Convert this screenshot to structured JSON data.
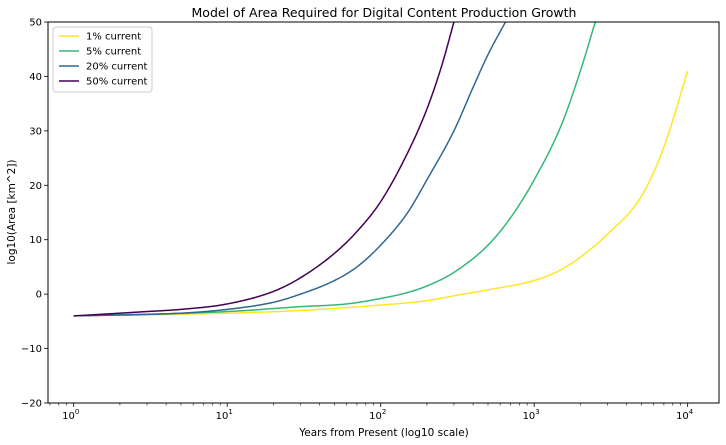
{
  "chart_data": {
    "type": "line",
    "title": "Model of Area Required for Digital Content Production Growth",
    "xlabel": "Years from Present (log10 scale)",
    "ylabel": "log10(Area [km^2])",
    "xscale": "log",
    "xlim": [
      0.68,
      16000
    ],
    "ylim": [
      -20,
      50
    ],
    "x_ticks": [
      {
        "value": 1,
        "base": "10",
        "exp": "0"
      },
      {
        "value": 10,
        "base": "10",
        "exp": "1"
      },
      {
        "value": 100,
        "base": "10",
        "exp": "2"
      },
      {
        "value": 1000,
        "base": "10",
        "exp": "3"
      },
      {
        "value": 10000,
        "base": "10",
        "exp": "4"
      }
    ],
    "y_ticks": [
      -20,
      -10,
      0,
      10,
      20,
      30,
      40,
      50
    ],
    "grid": false,
    "legend_position": "top-left",
    "series": [
      {
        "name": "1% current",
        "color": "#fde725",
        "points": [
          [
            1,
            -4.0
          ],
          [
            10,
            -3.5
          ],
          [
            30,
            -3.0
          ],
          [
            100,
            -2.0
          ],
          [
            200,
            -1.2
          ],
          [
            300,
            -0.3
          ],
          [
            500,
            0.8
          ],
          [
            1000,
            2.5
          ],
          [
            1500,
            4.5
          ],
          [
            2000,
            6.8
          ],
          [
            3000,
            11
          ],
          [
            5000,
            18
          ],
          [
            7000,
            27
          ],
          [
            10000,
            41
          ]
        ]
      },
      {
        "name": "5% current",
        "color": "#35b779",
        "points": [
          [
            1,
            -4.0
          ],
          [
            10,
            -3.2
          ],
          [
            30,
            -2.3
          ],
          [
            60,
            -1.8
          ],
          [
            100,
            -0.8
          ],
          [
            150,
            0.3
          ],
          [
            200,
            1.5
          ],
          [
            300,
            4.0
          ],
          [
            500,
            9.0
          ],
          [
            700,
            14
          ],
          [
            1000,
            21
          ],
          [
            1500,
            31
          ],
          [
            2000,
            41
          ],
          [
            2500,
            50
          ]
        ]
      },
      {
        "name": "20% current",
        "color": "#31688e",
        "points": [
          [
            1,
            -4.0
          ],
          [
            5,
            -3.5
          ],
          [
            10,
            -2.8
          ],
          [
            20,
            -1.5
          ],
          [
            30,
            0.0
          ],
          [
            50,
            2.5
          ],
          [
            70,
            5.0
          ],
          [
            100,
            9.0
          ],
          [
            150,
            15
          ],
          [
            200,
            21
          ],
          [
            300,
            30
          ],
          [
            400,
            38
          ],
          [
            500,
            44
          ],
          [
            650,
            50
          ]
        ]
      },
      {
        "name": "50% current",
        "color": "#440154",
        "points": [
          [
            1,
            -4.0
          ],
          [
            3,
            -3.2
          ],
          [
            5,
            -2.8
          ],
          [
            10,
            -1.8
          ],
          [
            20,
            0.5
          ],
          [
            30,
            3.0
          ],
          [
            50,
            7.5
          ],
          [
            70,
            11.5
          ],
          [
            100,
            17
          ],
          [
            150,
            26
          ],
          [
            200,
            34
          ],
          [
            250,
            42
          ],
          [
            300,
            50
          ]
        ]
      }
    ]
  }
}
